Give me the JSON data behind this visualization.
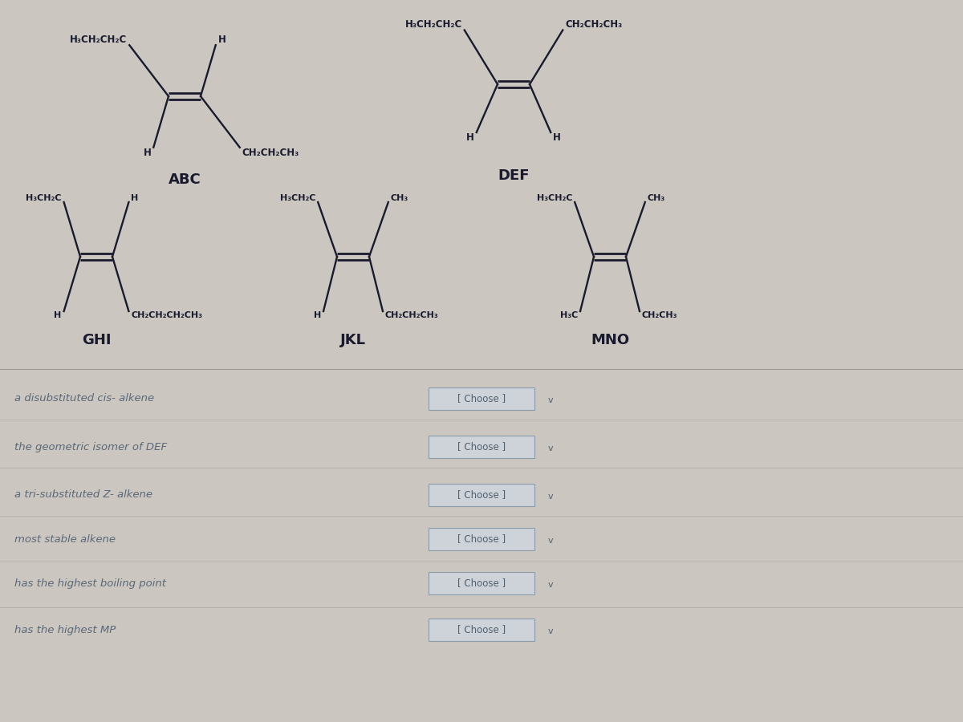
{
  "bg_color": "#cbc6bf",
  "line_color": "#1a1a2e",
  "text_color": "#1a1a2e",
  "label_color": "#5a6878",
  "divider_color": "#999999",
  "questions": [
    "a disubstituted cis- alkene",
    "the geometric isomer of DEF",
    "a tri-substituted Z- alkene",
    "most stable alkene",
    "has the highest boiling point",
    "has the highest MP"
  ],
  "choose_text": "[ Choose ]"
}
